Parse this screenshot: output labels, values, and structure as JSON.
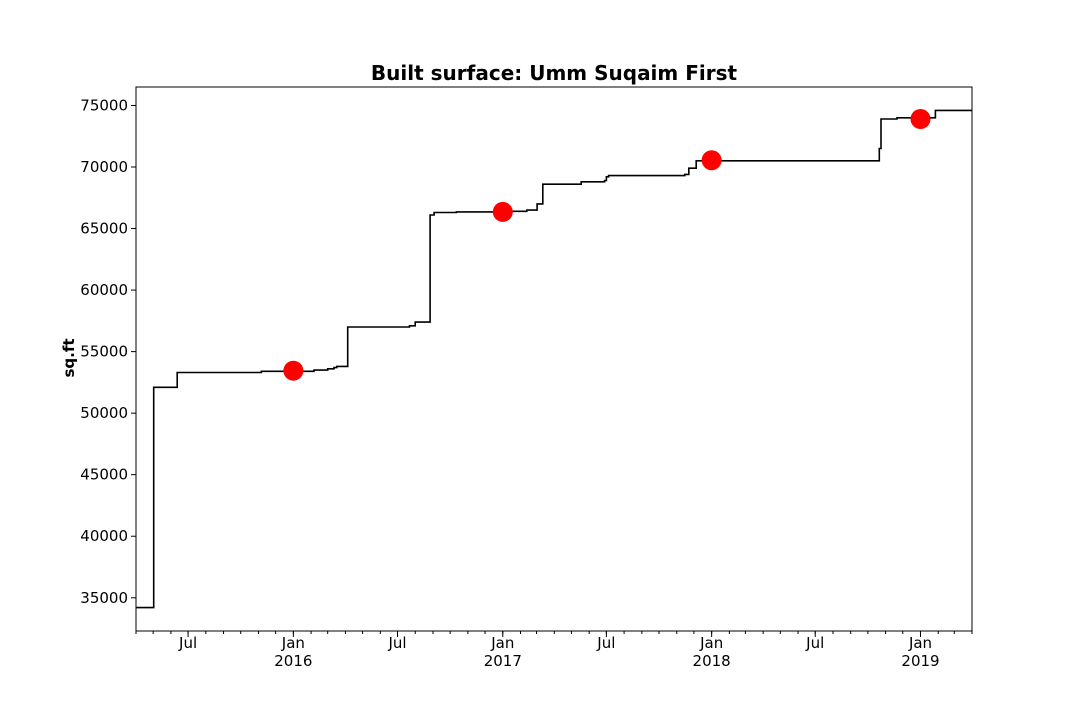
{
  "chart_data": {
    "type": "line",
    "title": "Built surface: Umm Suqaim First",
    "xlabel": "",
    "ylabel": "sq.ft",
    "x_range": [
      "2015-04-01",
      "2019-04-01"
    ],
    "ylim": [
      32300,
      76500
    ],
    "y_ticks": [
      35000,
      40000,
      45000,
      50000,
      55000,
      60000,
      65000,
      70000,
      75000
    ],
    "y_tick_labels": [
      "35000",
      "40000",
      "45000",
      "50000",
      "55000",
      "60000",
      "65000",
      "70000",
      "75000"
    ],
    "x_ticks": [
      {
        "date": "2015-07-01",
        "label": "Jul",
        "sublabel": ""
      },
      {
        "date": "2016-01-01",
        "label": "Jan",
        "sublabel": "2016"
      },
      {
        "date": "2016-07-01",
        "label": "Jul",
        "sublabel": ""
      },
      {
        "date": "2017-01-01",
        "label": "Jan",
        "sublabel": "2017"
      },
      {
        "date": "2017-07-01",
        "label": "Jul",
        "sublabel": ""
      },
      {
        "date": "2018-01-01",
        "label": "Jan",
        "sublabel": "2018"
      },
      {
        "date": "2018-07-01",
        "label": "Jul",
        "sublabel": ""
      },
      {
        "date": "2019-01-01",
        "label": "Jan",
        "sublabel": "2019"
      }
    ],
    "grid": false,
    "series": [
      {
        "style": "step",
        "color": "#000000",
        "points": [
          {
            "x": "2015-04-01",
            "y": 34200
          },
          {
            "x": "2015-05-02",
            "y": 52100
          },
          {
            "x": "2015-06-12",
            "y": 53300
          },
          {
            "x": "2015-11-06",
            "y": 53400
          },
          {
            "x": "2016-02-06",
            "y": 53500
          },
          {
            "x": "2016-03-01",
            "y": 53600
          },
          {
            "x": "2016-03-12",
            "y": 53700
          },
          {
            "x": "2016-03-17",
            "y": 53800
          },
          {
            "x": "2016-04-05",
            "y": 57000
          },
          {
            "x": "2016-07-22",
            "y": 57100
          },
          {
            "x": "2016-08-01",
            "y": 57400
          },
          {
            "x": "2016-08-27",
            "y": 66100
          },
          {
            "x": "2016-09-03",
            "y": 66300
          },
          {
            "x": "2016-10-12",
            "y": 66350
          },
          {
            "x": "2017-01-15",
            "y": 66400
          },
          {
            "x": "2017-02-12",
            "y": 66500
          },
          {
            "x": "2017-03-02",
            "y": 67000
          },
          {
            "x": "2017-03-12",
            "y": 68600
          },
          {
            "x": "2017-05-18",
            "y": 68800
          },
          {
            "x": "2017-06-28",
            "y": 68900
          },
          {
            "x": "2017-07-01",
            "y": 69200
          },
          {
            "x": "2017-07-05",
            "y": 69300
          },
          {
            "x": "2017-11-15",
            "y": 69400
          },
          {
            "x": "2017-11-22",
            "y": 69900
          },
          {
            "x": "2017-12-05",
            "y": 70500
          },
          {
            "x": "2018-10-21",
            "y": 71500
          },
          {
            "x": "2018-10-24",
            "y": 73900
          },
          {
            "x": "2018-11-21",
            "y": 74000
          },
          {
            "x": "2019-01-27",
            "y": 74600
          },
          {
            "x": "2019-04-01",
            "y": 74600
          }
        ]
      },
      {
        "style": "markers",
        "color": "#ff0000",
        "points": [
          {
            "x": "2016-01-01",
            "y": 53450
          },
          {
            "x": "2017-01-01",
            "y": 66350
          },
          {
            "x": "2018-01-01",
            "y": 70550
          },
          {
            "x": "2019-01-01",
            "y": 73900
          }
        ]
      }
    ]
  }
}
